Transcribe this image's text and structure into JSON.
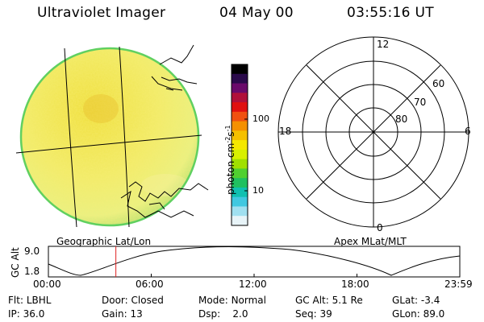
{
  "header": {
    "instrument": "Ultraviolet Imager",
    "date": "04 May 00",
    "time": "03:55:16 UT"
  },
  "earth_map": {
    "caption": "Geographic Lat/Lon"
  },
  "colorbar": {
    "unit_label_main": "photon cm",
    "unit_label_sup1": "-2",
    "unit_label_mid": "s",
    "unit_label_sup2": "-1",
    "ticks": [
      "100",
      "10"
    ],
    "colors": [
      "#000000",
      "#2a0a4a",
      "#6a0a6a",
      "#b0103a",
      "#e01010",
      "#f05010",
      "#f59000",
      "#f5c000",
      "#f5e800",
      "#d8f000",
      "#a0e000",
      "#50d030",
      "#20c060",
      "#10c0b0",
      "#40c8e0",
      "#a0e0f0",
      "#e8f4f8"
    ]
  },
  "polar_plot": {
    "caption": "Apex MLat/MLT",
    "mlt_labels": {
      "top": "12",
      "left": "18",
      "right": "6",
      "bottom": "0"
    },
    "mlat_labels": [
      "60",
      "70",
      "80"
    ]
  },
  "altitude_plot": {
    "ylabel": "GC Alt",
    "yticks": [
      "9.0",
      "1.8"
    ],
    "xticks": [
      "00:00",
      "06:00",
      "12:00",
      "18:00",
      "23:59"
    ],
    "current_time_fraction": 0.164
  },
  "status": {
    "flt_label": "Flt:",
    "flt_value": "LBHL",
    "ip_label": "IP:",
    "ip_value": "36.0",
    "door_label": "Door:",
    "door_value": "Closed",
    "gain_label": "Gain:",
    "gain_value": "13",
    "mode_label": "Mode:",
    "mode_value": "Normal",
    "dsp_label": "Dsp:",
    "dsp_value": "2.0",
    "gcalt_label": "GC Alt:",
    "gcalt_value": "5.1 Re",
    "seq_label": "Seq:",
    "seq_value": "39",
    "glat_label": "GLat:",
    "glat_value": "-3.4",
    "glon_label": "GLon:",
    "glon_value": "89.0"
  }
}
